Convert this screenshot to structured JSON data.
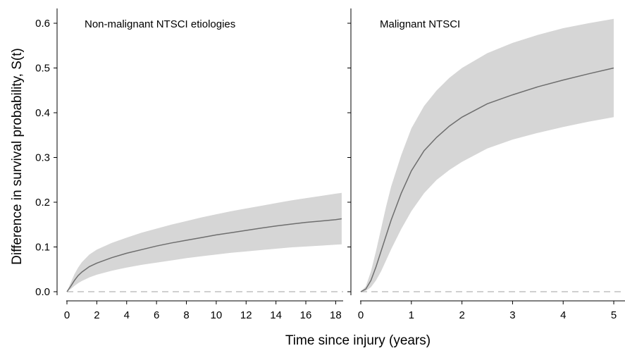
{
  "chart_data": {
    "type": "line",
    "ylabel": "Difference in survival probability, S(t)",
    "xlabel": "Time since injury (years)",
    "ylim": [
      0,
      0.6
    ],
    "yticks": [
      0.0,
      0.1,
      0.2,
      0.3,
      0.4,
      0.5,
      0.6
    ],
    "y_tick_labels": [
      "0.0",
      "0.1",
      "0.2",
      "0.3",
      "0.4",
      "0.5",
      "0.6"
    ],
    "reference_line": {
      "y": 0,
      "style": "dashed",
      "color": "#b3b3b3"
    },
    "colors": {
      "line": "#6e6e6e",
      "band": "#d6d6d6",
      "axis": "#000000"
    },
    "panels": [
      {
        "title": "Non-malignant NTSCI etiologies",
        "xlim": [
          0,
          18.5
        ],
        "xticks": [
          0,
          2,
          4,
          6,
          8,
          10,
          12,
          14,
          16,
          18
        ],
        "x_tick_labels": [
          "0",
          "2",
          "4",
          "6",
          "8",
          "10",
          "12",
          "14",
          "16",
          "18"
        ],
        "x": [
          0,
          0.25,
          0.5,
          0.75,
          1,
          1.5,
          2,
          3,
          4,
          5,
          6,
          7,
          8,
          9,
          10,
          11,
          12,
          13,
          14,
          15,
          16,
          17,
          18,
          18.4
        ],
        "y": [
          0,
          0.012,
          0.025,
          0.036,
          0.044,
          0.056,
          0.064,
          0.076,
          0.086,
          0.094,
          0.102,
          0.109,
          0.115,
          0.121,
          0.127,
          0.132,
          0.137,
          0.142,
          0.147,
          0.151,
          0.155,
          0.158,
          0.161,
          0.163
        ],
        "lower": [
          0,
          0.006,
          0.013,
          0.019,
          0.024,
          0.032,
          0.038,
          0.047,
          0.054,
          0.06,
          0.065,
          0.07,
          0.075,
          0.079,
          0.083,
          0.087,
          0.09,
          0.093,
          0.096,
          0.099,
          0.101,
          0.103,
          0.105,
          0.106
        ],
        "upper": [
          0,
          0.02,
          0.039,
          0.054,
          0.066,
          0.083,
          0.094,
          0.109,
          0.121,
          0.132,
          0.141,
          0.15,
          0.158,
          0.166,
          0.173,
          0.18,
          0.186,
          0.192,
          0.198,
          0.204,
          0.209,
          0.214,
          0.219,
          0.221
        ]
      },
      {
        "title": "Malignant NTSCI",
        "xlim": [
          0,
          5.25
        ],
        "xticks": [
          0,
          1,
          2,
          3,
          4,
          5
        ],
        "x_tick_labels": [
          "0",
          "1",
          "2",
          "3",
          "4",
          "5"
        ],
        "x": [
          0,
          0.1,
          0.2,
          0.3,
          0.4,
          0.5,
          0.6,
          0.8,
          1.0,
          1.25,
          1.5,
          1.75,
          2.0,
          2.5,
          3.0,
          3.5,
          4.0,
          4.5,
          5.0
        ],
        "y": [
          0,
          0.006,
          0.025,
          0.055,
          0.09,
          0.125,
          0.16,
          0.22,
          0.27,
          0.315,
          0.345,
          0.37,
          0.39,
          0.42,
          0.44,
          0.458,
          0.473,
          0.487,
          0.5
        ],
        "lower": [
          0,
          0.002,
          0.01,
          0.025,
          0.045,
          0.07,
          0.095,
          0.14,
          0.18,
          0.22,
          0.25,
          0.272,
          0.29,
          0.32,
          0.34,
          0.355,
          0.368,
          0.38,
          0.39
        ],
        "upper": [
          0,
          0.012,
          0.045,
          0.09,
          0.14,
          0.19,
          0.235,
          0.305,
          0.365,
          0.415,
          0.45,
          0.478,
          0.5,
          0.533,
          0.556,
          0.574,
          0.589,
          0.6,
          0.61
        ]
      }
    ]
  }
}
